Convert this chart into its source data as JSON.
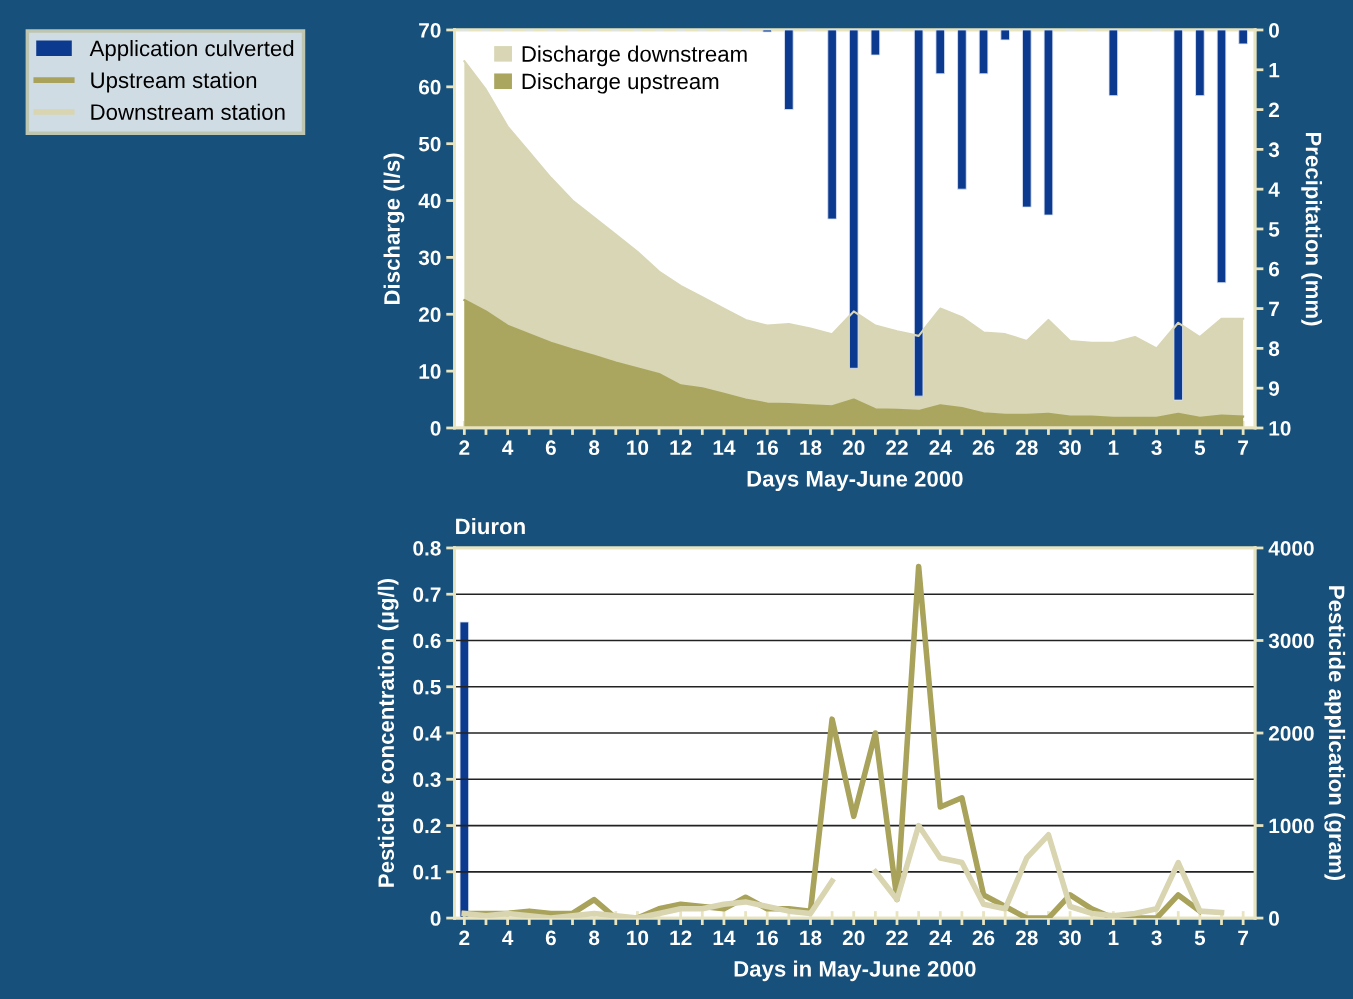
{
  "chart_data": [
    {
      "type": "area",
      "xlabel": "Days May-June 2000",
      "ylabel": "Discharge (l/s)",
      "y2label": "Precipitation (mm)",
      "categories": [
        "2",
        null,
        "4",
        null,
        "6",
        null,
        "8",
        null,
        "10",
        null,
        "12",
        null,
        "14",
        null,
        "16",
        null,
        "18",
        null,
        "20",
        null,
        "22",
        null,
        "24",
        null,
        "26",
        null,
        "28",
        null,
        "30",
        null,
        "1",
        null,
        "3",
        null,
        "5",
        null,
        "7"
      ],
      "ylim": [
        0,
        70
      ],
      "yticks": [
        0,
        10,
        20,
        30,
        40,
        50,
        60,
        70
      ],
      "y2lim": [
        10,
        0
      ],
      "y2ticks": [
        0,
        1,
        2,
        3,
        4,
        5,
        6,
        7,
        8,
        9,
        10
      ],
      "grid": false,
      "legend": "top left",
      "series": [
        {
          "name": "Discharge downstream",
          "color": "#d8d6b4",
          "values": [
            64.5,
            59.5,
            53,
            48.5,
            44,
            40,
            37,
            34,
            31,
            27.5,
            25,
            23,
            21,
            19,
            18,
            18.3,
            17.5,
            16.5,
            20.5,
            18,
            17,
            16.2,
            21,
            19.5,
            16.8,
            16.5,
            15.3,
            19,
            15.3,
            15,
            15,
            16,
            14,
            18.5,
            16,
            19.2,
            19.2
          ]
        },
        {
          "name": "Discharge upstream",
          "color": "#aaa65f",
          "values": [
            22.5,
            20.5,
            18,
            16.5,
            15,
            13.8,
            12.7,
            11.5,
            10.5,
            9.5,
            7.5,
            7,
            6,
            5,
            4.3,
            4.2,
            4,
            3.8,
            5,
            3.3,
            3.2,
            3,
            4,
            3.5,
            2.6,
            2.3,
            2.3,
            2.5,
            2,
            2,
            1.8,
            1.8,
            1.8,
            2.5,
            1.8,
            2.2,
            2
          ]
        },
        {
          "type": "bar",
          "axis": "y2",
          "color": "#0c3a8f",
          "values": [
            null,
            null,
            null,
            null,
            null,
            null,
            null,
            null,
            null,
            null,
            null,
            null,
            null,
            null,
            0.05,
            2.0,
            null,
            4.75,
            8.5,
            0.63,
            null,
            9.2,
            1.1,
            4.0,
            1.1,
            0.25,
            4.45,
            4.65,
            null,
            null,
            1.65,
            null,
            null,
            9.3,
            1.65,
            6.35,
            0.35
          ]
        }
      ]
    },
    {
      "type": "line",
      "title": "Diuron",
      "xlabel": "Days in May-June 2000",
      "ylabel": "Pesticide concentration (µg/l)",
      "y2label": "Pesticide application (gram)",
      "categories": [
        "2",
        null,
        "4",
        null,
        "6",
        null,
        "8",
        null,
        "10",
        null,
        "12",
        null,
        "14",
        null,
        "16",
        null,
        "18",
        null,
        "20",
        null,
        "22",
        null,
        "24",
        null,
        "26",
        null,
        "28",
        null,
        "30",
        null,
        "1",
        null,
        "3",
        null,
        "5",
        null,
        "7"
      ],
      "ylim": [
        0,
        0.8
      ],
      "yticks": [
        0,
        0.1,
        0.2,
        0.3,
        0.4,
        0.5,
        0.6,
        0.7,
        0.8
      ],
      "y2lim": [
        0,
        4000
      ],
      "y2ticks": [
        0,
        1000,
        2000,
        3000,
        4000
      ],
      "grid": "y",
      "legend": "left",
      "series": [
        {
          "name": "Application culverted",
          "type": "bar",
          "axis": "y2",
          "color": "#0c3a8f",
          "values": [
            3200,
            null,
            null,
            null,
            null,
            null,
            null,
            null,
            null,
            null,
            null,
            null,
            null,
            null,
            null,
            null,
            null,
            null,
            null,
            null,
            null,
            null,
            null,
            null,
            null,
            null,
            null,
            null,
            null,
            null,
            null,
            null,
            null,
            null,
            null,
            null,
            null
          ]
        },
        {
          "name": "Upstream station",
          "color": "#a8a25a",
          "values": [
            0.01,
            0.01,
            0.01,
            0.015,
            0.01,
            0.01,
            0.04,
            0.0,
            0.0,
            0.02,
            0.03,
            0.025,
            0.02,
            0.045,
            0.02,
            0.02,
            0.015,
            0.43,
            0.22,
            0.4,
            0.04,
            0.76,
            0.24,
            0.26,
            0.05,
            0.025,
            0.0,
            0.0,
            0.05,
            0.02,
            0.0,
            0.0,
            0.0,
            0.05,
            0.015,
            null,
            null
          ]
        },
        {
          "name": "Downstream station",
          "color": "#d8d5b0",
          "values": [
            0.01,
            0.005,
            0.01,
            0.005,
            0.0,
            0.005,
            0.01,
            0.005,
            0.0,
            0.01,
            0.02,
            0.02,
            0.03,
            0.035,
            0.025,
            0.015,
            0.01,
            0.08,
            null,
            0.1,
            0.04,
            0.2,
            0.13,
            0.12,
            0.03,
            0.02,
            0.13,
            0.18,
            0.025,
            0.01,
            0.005,
            0.01,
            0.02,
            0.12,
            0.015,
            0.012,
            null
          ]
        }
      ]
    }
  ]
}
